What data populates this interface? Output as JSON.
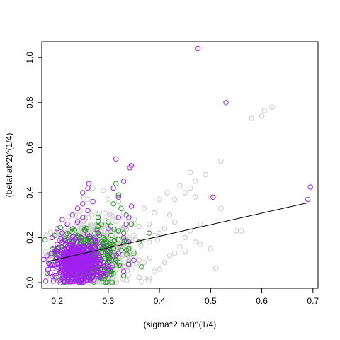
{
  "chart_data": {
    "type": "scatter",
    "title": "",
    "xlabel": "(sigma^2 hat)^(1/4)",
    "ylabel": "(betahat^2)^(1/4)",
    "xlim": [
      0.17,
      0.71
    ],
    "ylim": [
      -0.025,
      1.07
    ],
    "xticks": [
      0.2,
      0.3,
      0.4,
      0.5,
      0.6,
      0.7
    ],
    "xtick_labels": [
      "0.2",
      "0.3",
      "0.4",
      "0.5",
      "0.6",
      "0.7"
    ],
    "yticks": [
      0.0,
      0.2,
      0.4,
      0.6,
      0.8,
      1.0
    ],
    "ytick_labels": [
      "0.0",
      "0.2",
      "0.4",
      "0.6",
      "0.8",
      "1.0"
    ],
    "grid": false,
    "legend": "none",
    "colors": {
      "gray": "#c8c8c8",
      "green": "#1f9a1f",
      "purple": "#a020f0",
      "line": "#000000"
    },
    "fit_line": {
      "x": [
        0.18,
        0.69
      ],
      "y": [
        0.093,
        0.355
      ]
    },
    "series": [
      {
        "color": "#c8c8c8",
        "points": [
          [
            0.6,
            0.74
          ],
          [
            0.605,
            0.765
          ],
          [
            0.62,
            0.78
          ],
          [
            0.58,
            0.73
          ],
          [
            0.46,
            0.49
          ],
          [
            0.47,
            0.45
          ],
          [
            0.49,
            0.48
          ],
          [
            0.44,
            0.43
          ],
          [
            0.46,
            0.42
          ],
          [
            0.45,
            0.4
          ],
          [
            0.52,
            0.54
          ],
          [
            0.47,
            0.38
          ],
          [
            0.5,
            0.38
          ],
          [
            0.415,
            0.4
          ],
          [
            0.4,
            0.37
          ],
          [
            0.43,
            0.37
          ],
          [
            0.52,
            0.33
          ],
          [
            0.55,
            0.23
          ],
          [
            0.56,
            0.23
          ],
          [
            0.48,
            0.26
          ],
          [
            0.46,
            0.23
          ],
          [
            0.37,
            0.33
          ],
          [
            0.39,
            0.31
          ],
          [
            0.42,
            0.3
          ],
          [
            0.43,
            0.27
          ],
          [
            0.41,
            0.24
          ],
          [
            0.4,
            0.22
          ],
          [
            0.45,
            0.2
          ],
          [
            0.47,
            0.18
          ],
          [
            0.44,
            0.16
          ],
          [
            0.43,
            0.13
          ],
          [
            0.42,
            0.12
          ],
          [
            0.4,
            0.06
          ],
          [
            0.39,
            0.05
          ],
          [
            0.38,
            0.02
          ],
          [
            0.37,
            0.02
          ],
          [
            0.51,
            0.065
          ],
          [
            0.36,
            0.1
          ],
          [
            0.35,
            0.14
          ],
          [
            0.38,
            0.18
          ],
          [
            0.36,
            0.25
          ],
          [
            0.34,
            0.28
          ],
          [
            0.33,
            0.31
          ],
          [
            0.32,
            0.36
          ],
          [
            0.3,
            0.37
          ],
          [
            0.29,
            0.41
          ],
          [
            0.27,
            0.42
          ],
          [
            0.26,
            0.37
          ],
          [
            0.35,
            0.21
          ],
          [
            0.34,
            0.12
          ],
          [
            0.37,
            0.09
          ],
          [
            0.41,
            0.09
          ],
          [
            0.45,
            0.14
          ],
          [
            0.48,
            0.17
          ],
          [
            0.5,
            0.15
          ],
          [
            0.38,
            0.26
          ],
          [
            0.39,
            0.21
          ]
        ]
      },
      {
        "color": "#1f9a1f",
        "points": [
          [
            0.315,
            0.44
          ],
          [
            0.32,
            0.39
          ],
          [
            0.31,
            0.35
          ],
          [
            0.325,
            0.33
          ],
          [
            0.335,
            0.3
          ],
          [
            0.345,
            0.26
          ],
          [
            0.33,
            0.22
          ],
          [
            0.36,
            0.18
          ],
          [
            0.35,
            0.13
          ],
          [
            0.34,
            0.085
          ],
          [
            0.365,
            0.07
          ],
          [
            0.38,
            0.22
          ],
          [
            0.3,
            0.27
          ],
          [
            0.28,
            0.25
          ],
          [
            0.29,
            0.2
          ],
          [
            0.31,
            0.17
          ],
          [
            0.3,
            0.14
          ],
          [
            0.315,
            0.1
          ],
          [
            0.29,
            0.06
          ],
          [
            0.27,
            0.05
          ],
          [
            0.26,
            0.03
          ],
          [
            0.24,
            0.05
          ],
          [
            0.22,
            0.07
          ],
          [
            0.21,
            0.09
          ],
          [
            0.25,
            0.11
          ],
          [
            0.27,
            0.14
          ],
          [
            0.26,
            0.18
          ],
          [
            0.24,
            0.21
          ],
          [
            0.22,
            0.19
          ],
          [
            0.2,
            0.15
          ],
          [
            0.23,
            0.24
          ],
          [
            0.28,
            0.29
          ],
          [
            0.32,
            0.23
          ],
          [
            0.335,
            0.18
          ],
          [
            0.34,
            0.15
          ],
          [
            0.31,
            0.04
          ],
          [
            0.33,
            0.03
          ],
          [
            0.3,
            0.02
          ]
        ]
      },
      {
        "color": "#a020f0",
        "points": [
          [
            0.475,
            1.04
          ],
          [
            0.53,
            0.8
          ],
          [
            0.315,
            0.55
          ],
          [
            0.345,
            0.52
          ],
          [
            0.342,
            0.51
          ],
          [
            0.505,
            0.38
          ],
          [
            0.69,
            0.37
          ],
          [
            0.695,
            0.425
          ],
          [
            0.25,
            0.4
          ],
          [
            0.26,
            0.42
          ],
          [
            0.262,
            0.44
          ],
          [
            0.31,
            0.42
          ],
          [
            0.32,
            0.38
          ],
          [
            0.33,
            0.45
          ],
          [
            0.27,
            0.36
          ],
          [
            0.25,
            0.35
          ],
          [
            0.24,
            0.33
          ],
          [
            0.26,
            0.32
          ],
          [
            0.23,
            0.3
          ],
          [
            0.21,
            0.28
          ],
          [
            0.22,
            0.26
          ],
          [
            0.24,
            0.27
          ],
          [
            0.25,
            0.29
          ],
          [
            0.2,
            0.24
          ],
          [
            0.21,
            0.22
          ],
          [
            0.19,
            0.2
          ],
          [
            0.18,
            0.12
          ],
          [
            0.19,
            0.13
          ],
          [
            0.2,
            0.11
          ],
          [
            0.2,
            0.08
          ],
          [
            0.21,
            0.05
          ],
          [
            0.22,
            0.03
          ],
          [
            0.23,
            0.02
          ],
          [
            0.24,
            0.01
          ],
          [
            0.25,
            0.02
          ],
          [
            0.26,
            0.04
          ],
          [
            0.27,
            0.03
          ],
          [
            0.28,
            0.02
          ],
          [
            0.29,
            0.04
          ],
          [
            0.3,
            0.09
          ],
          [
            0.32,
            0.13
          ],
          [
            0.34,
            0.08
          ],
          [
            0.33,
            0.05
          ],
          [
            0.35,
            0.1
          ],
          [
            0.34,
            0.18
          ],
          [
            0.33,
            0.2
          ],
          [
            0.32,
            0.29
          ],
          [
            0.345,
            0.34
          ],
          [
            0.34,
            0.29
          ],
          [
            0.335,
            0.26
          ],
          [
            0.28,
            0.22
          ],
          [
            0.3,
            0.24
          ],
          [
            0.27,
            0.1
          ],
          [
            0.26,
            0.07
          ],
          [
            0.24,
            0.06
          ],
          [
            0.22,
            0.09
          ],
          [
            0.23,
            0.14
          ],
          [
            0.25,
            0.16
          ],
          [
            0.24,
            0.18
          ],
          [
            0.22,
            0.16
          ],
          [
            0.23,
            0.11
          ],
          [
            0.21,
            0.13
          ],
          [
            0.2,
            0.17
          ],
          [
            0.29,
            0.16
          ],
          [
            0.31,
            0.12
          ],
          [
            0.3,
            0.06
          ],
          [
            0.28,
            0.07
          ],
          [
            0.27,
            0.19
          ]
        ]
      }
    ],
    "dense_clusters": [
      {
        "color": "#c8c8c8",
        "cx": 0.27,
        "cy": 0.13,
        "sx": 0.04,
        "sy": 0.075,
        "count": 650
      },
      {
        "color": "#1f9a1f",
        "cx": 0.26,
        "cy": 0.12,
        "sx": 0.032,
        "sy": 0.065,
        "count": 220
      },
      {
        "color": "#a020f0",
        "cx": 0.24,
        "cy": 0.085,
        "sx": 0.022,
        "sy": 0.045,
        "count": 520
      }
    ]
  }
}
